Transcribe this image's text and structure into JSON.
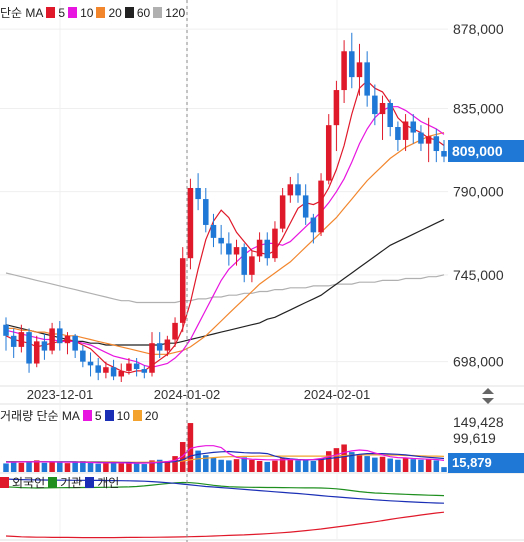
{
  "header": {
    "price_title": "단순 MA",
    "ma": [
      {
        "label": "5",
        "color": "#e0192a"
      },
      {
        "label": "10",
        "color": "#e815e0"
      },
      {
        "label": "20",
        "color": "#f2862d"
      },
      {
        "label": "60",
        "color": "#222222"
      },
      {
        "label": "120",
        "color": "#b0b0b0"
      }
    ],
    "volume_title": "거래량 단순 MA",
    "vol_ma": [
      {
        "label": "5",
        "color": "#e815e0"
      },
      {
        "label": "10",
        "color": "#1a2fb5"
      },
      {
        "label": "20",
        "color": "#f2a22d"
      }
    ],
    "investor": [
      {
        "label": "외국인",
        "color": "#e0192a"
      },
      {
        "label": "기관",
        "color": "#1f8f1f"
      },
      {
        "label": "개인",
        "color": "#1a2fb5"
      }
    ]
  },
  "chart_data": {
    "type": "candlestick",
    "price_axis": {
      "ticks": [
        "878,000",
        "835,000",
        "790,000",
        "745,000",
        "698,000"
      ],
      "ylim": [
        687000,
        884000
      ]
    },
    "current_price": "809,000",
    "date_labels": [
      "2023-12-01",
      "2024-01-02",
      "2024-02-01"
    ],
    "volume_axis": {
      "ticks": [
        "149,428",
        "99,619"
      ],
      "current": "15,879"
    },
    "colors": {
      "up": "#e0192a",
      "down": "#1f78d6"
    },
    "candles": [
      [
        718000,
        722000,
        704000,
        712000
      ],
      [
        712000,
        716000,
        700000,
        706000
      ],
      [
        706000,
        718000,
        703000,
        714000
      ],
      [
        714000,
        716000,
        692000,
        697000
      ],
      [
        697000,
        712000,
        695000,
        709000
      ],
      [
        709000,
        713000,
        699000,
        704000
      ],
      [
        704000,
        719000,
        702000,
        716000
      ],
      [
        716000,
        720000,
        704000,
        708000
      ],
      [
        708000,
        714000,
        702000,
        712000
      ],
      [
        712000,
        713000,
        700000,
        704000
      ],
      [
        704000,
        707000,
        695000,
        698000
      ],
      [
        698000,
        703000,
        690000,
        696000
      ],
      [
        696000,
        700000,
        688000,
        692000
      ],
      [
        692000,
        698000,
        689000,
        695000
      ],
      [
        695000,
        699000,
        688000,
        690000
      ],
      [
        690000,
        697000,
        687000,
        693000
      ],
      [
        693000,
        700000,
        691000,
        697000
      ],
      [
        697000,
        700000,
        690000,
        694000
      ],
      [
        694000,
        696000,
        689000,
        692000
      ],
      [
        692000,
        714000,
        690000,
        708000
      ],
      [
        708000,
        714000,
        700000,
        704000
      ],
      [
        704000,
        712000,
        701000,
        710000
      ],
      [
        710000,
        722000,
        706000,
        719000
      ],
      [
        719000,
        760000,
        714000,
        754000
      ],
      [
        754000,
        797000,
        748000,
        792000
      ],
      [
        792000,
        800000,
        780000,
        786000
      ],
      [
        786000,
        792000,
        768000,
        772000
      ],
      [
        772000,
        778000,
        760000,
        765000
      ],
      [
        765000,
        772000,
        756000,
        762000
      ],
      [
        762000,
        768000,
        750000,
        756000
      ],
      [
        756000,
        764000,
        750000,
        760000
      ],
      [
        760000,
        762000,
        741000,
        745000
      ],
      [
        745000,
        758000,
        741000,
        755000
      ],
      [
        755000,
        768000,
        752000,
        764000
      ],
      [
        764000,
        768000,
        750000,
        754000
      ],
      [
        754000,
        774000,
        752000,
        770000
      ],
      [
        770000,
        792000,
        768000,
        788000
      ],
      [
        788000,
        798000,
        784000,
        794000
      ],
      [
        794000,
        800000,
        784000,
        788000
      ],
      [
        788000,
        794000,
        772000,
        776000
      ],
      [
        776000,
        778000,
        762000,
        768000
      ],
      [
        768000,
        800000,
        766000,
        796000
      ],
      [
        796000,
        832000,
        794000,
        826000
      ],
      [
        826000,
        850000,
        812000,
        845000
      ],
      [
        845000,
        872000,
        838000,
        866000
      ],
      [
        866000,
        876000,
        846000,
        852000
      ],
      [
        852000,
        870000,
        842000,
        860000
      ],
      [
        860000,
        866000,
        836000,
        842000
      ],
      [
        842000,
        848000,
        826000,
        832000
      ],
      [
        832000,
        842000,
        818000,
        838000
      ],
      [
        838000,
        840000,
        820000,
        825000
      ],
      [
        825000,
        828000,
        812000,
        818000
      ],
      [
        818000,
        832000,
        812000,
        828000
      ],
      [
        828000,
        832000,
        816000,
        822000
      ],
      [
        822000,
        826000,
        812000,
        816000
      ],
      [
        816000,
        830000,
        806000,
        820000
      ],
      [
        820000,
        824000,
        806000,
        812000
      ],
      [
        812000,
        818000,
        806000,
        809000
      ]
    ],
    "ma5": [
      712000,
      710000,
      709000,
      708000,
      706000,
      707000,
      708000,
      709000,
      710000,
      709000,
      707000,
      705000,
      701000,
      697000,
      695000,
      693000,
      692000,
      693000,
      693000,
      696000,
      699000,
      702000,
      707000,
      716000,
      730000,
      748000,
      764000,
      774000,
      780000,
      776000,
      768000,
      763000,
      758000,
      757000,
      756000,
      758000,
      765000,
      773000,
      781000,
      784000,
      783000,
      785000,
      792000,
      802000,
      815000,
      832000,
      846000,
      850000,
      846000,
      844000,
      838000,
      830000,
      826000,
      824000,
      822000,
      819000,
      818000,
      815000
    ],
    "ma10": [
      715000,
      714000,
      713000,
      712000,
      711000,
      710000,
      710000,
      709000,
      709000,
      709000,
      708000,
      707000,
      705000,
      703000,
      701000,
      700000,
      699000,
      698000,
      696000,
      695000,
      696000,
      697000,
      700000,
      704000,
      710000,
      718000,
      726000,
      734000,
      742000,
      748000,
      752000,
      756000,
      759000,
      761000,
      762000,
      762000,
      761000,
      763000,
      767000,
      771000,
      775000,
      779000,
      784000,
      790000,
      797000,
      806000,
      816000,
      824000,
      830000,
      834000,
      836000,
      836000,
      834000,
      831000,
      828000,
      826000,
      824000,
      821000
    ],
    "ma20": [
      716000,
      716000,
      715000,
      715000,
      714000,
      714000,
      713000,
      713000,
      712000,
      712000,
      711000,
      710000,
      709000,
      708000,
      707000,
      706000,
      705000,
      704000,
      703000,
      702000,
      702000,
      702000,
      703000,
      704000,
      706000,
      709000,
      712000,
      716000,
      720000,
      724000,
      728000,
      732000,
      736000,
      740000,
      743000,
      746000,
      749000,
      752000,
      756000,
      760000,
      764000,
      768000,
      772000,
      776000,
      781000,
      786000,
      791000,
      796000,
      800000,
      804000,
      808000,
      811000,
      814000,
      816000,
      818000,
      820000,
      821000,
      822000
    ],
    "ma60": [
      718000,
      717000,
      716000,
      715000,
      714000,
      713000,
      712000,
      711000,
      710000,
      709000,
      709000,
      708000,
      708000,
      707000,
      707000,
      707000,
      707000,
      707000,
      707000,
      707000,
      707000,
      708000,
      708000,
      709000,
      710000,
      711000,
      712000,
      713000,
      714000,
      715000,
      716000,
      717000,
      718000,
      719000,
      721000,
      722000,
      724000,
      726000,
      728000,
      730000,
      732000,
      734000,
      737000,
      740000,
      743000,
      746000,
      749000,
      752000,
      755000,
      758000,
      761000,
      763000,
      765000,
      767000,
      769000,
      771000,
      773000,
      775000
    ],
    "ma120": [
      746000,
      745000,
      744000,
      743000,
      742000,
      741000,
      740000,
      739000,
      738000,
      737000,
      736000,
      735000,
      734000,
      733000,
      732000,
      731000,
      731000,
      730000,
      730000,
      730000,
      730000,
      730000,
      730000,
      731000,
      731000,
      732000,
      732000,
      733000,
      733000,
      734000,
      734000,
      735000,
      735000,
      736000,
      736000,
      737000,
      737000,
      738000,
      738000,
      738000,
      739000,
      739000,
      739000,
      740000,
      740000,
      740000,
      741000,
      741000,
      741000,
      742000,
      742000,
      742000,
      743000,
      743000,
      743000,
      744000,
      744000,
      745000
    ],
    "volume": [
      28000,
      32000,
      30000,
      35000,
      38000,
      30000,
      33000,
      31000,
      29000,
      34000,
      36000,
      30000,
      27000,
      29000,
      31000,
      28000,
      30000,
      29000,
      26000,
      38000,
      40000,
      36000,
      52000,
      98000,
      160000,
      70000,
      55000,
      46000,
      40000,
      38000,
      42000,
      48000,
      40000,
      36000,
      33000,
      37000,
      45000,
      42000,
      38000,
      40000,
      36000,
      44000,
      68000,
      78000,
      90000,
      65000,
      58000,
      52000,
      47000,
      50000,
      44000,
      40000,
      46000,
      42000,
      40000,
      43000,
      38000,
      15879
    ],
    "vol_ma5": [
      32000,
      32000,
      33000,
      33000,
      33000,
      33000,
      33000,
      32000,
      32000,
      32000,
      32000,
      31000,
      30000,
      30000,
      30000,
      30000,
      29000,
      29000,
      29000,
      30000,
      32000,
      34000,
      38000,
      52000,
      77000,
      83000,
      86000,
      86000,
      80000,
      60000,
      48000,
      44000,
      42000,
      41000,
      40000,
      40000,
      40000,
      41000,
      40000,
      40000,
      41000,
      44000,
      50000,
      56000,
      64000,
      69000,
      72000,
      70000,
      62000,
      56000,
      50000,
      47000,
      46000,
      44000,
      43000,
      42000,
      41000,
      38000
    ],
    "vol_ma10": [
      33000,
      33000,
      33000,
      33000,
      33000,
      33000,
      33000,
      33000,
      33000,
      33000,
      32000,
      32000,
      32000,
      31000,
      31000,
      31000,
      31000,
      30000,
      30000,
      30000,
      31000,
      32000,
      34000,
      40000,
      52000,
      58000,
      61000,
      64000,
      66000,
      67000,
      65000,
      63000,
      62000,
      62000,
      60000,
      52000,
      46000,
      43000,
      41000,
      40000,
      40000,
      41000,
      44000,
      47000,
      50000,
      54000,
      58000,
      60000,
      60000,
      60000,
      59000,
      58000,
      56000,
      53000,
      50000,
      48000,
      46000,
      44000
    ],
    "vol_ma20": [
      34000,
      34000,
      34000,
      34000,
      34000,
      34000,
      33000,
      33000,
      33000,
      33000,
      33000,
      33000,
      33000,
      33000,
      33000,
      32000,
      32000,
      32000,
      32000,
      32000,
      33000,
      33000,
      34000,
      36000,
      40000,
      43000,
      45000,
      47000,
      49000,
      50000,
      50000,
      51000,
      51000,
      52000,
      52000,
      52000,
      52000,
      52000,
      52000,
      52000,
      52000,
      52000,
      52000,
      53000,
      54000,
      55000,
      56000,
      56000,
      56000,
      56000,
      55000,
      55000,
      54000,
      54000,
      53000,
      52000,
      52000,
      51000
    ],
    "investor": {
      "foreign": [
        -1500,
        -1520,
        -1540,
        -1550,
        -1560,
        -1560,
        -1570,
        -1570,
        -1570,
        -1575,
        -1578,
        -1580,
        -1580,
        -1580,
        -1578,
        -1575,
        -1570,
        -1568,
        -1566,
        -1562,
        -1558,
        -1552,
        -1548,
        -1542,
        -1535,
        -1525,
        -1515,
        -1500,
        -1485,
        -1470,
        -1455,
        -1440,
        -1420,
        -1400,
        -1380,
        -1355,
        -1330,
        -1300,
        -1265,
        -1225,
        -1185,
        -1140,
        -1090,
        -1040,
        -990,
        -940,
        -885,
        -830,
        -775,
        -715,
        -655,
        -595,
        -540,
        -485,
        -430,
        -380,
        -330,
        -290
      ],
      "institution": [
        1000,
        980,
        960,
        950,
        940,
        945,
        950,
        955,
        960,
        962,
        965,
        968,
        970,
        975,
        980,
        990,
        1000,
        1020,
        1050,
        1090,
        1130,
        1170,
        1200,
        1220,
        1210,
        1180,
        1130,
        1080,
        1040,
        1010,
        990,
        980,
        975,
        970,
        968,
        965,
        960,
        955,
        950,
        948,
        945,
        940,
        925,
        900,
        860,
        810,
        760,
        720,
        690,
        670,
        650,
        635,
        620,
        605,
        590,
        575,
        565,
        555
      ],
      "individual": [
        1400,
        1380,
        1370,
        1360,
        1355,
        1350,
        1345,
        1340,
        1338,
        1335,
        1332,
        1330,
        1328,
        1325,
        1320,
        1315,
        1310,
        1300,
        1285,
        1265,
        1240,
        1210,
        1180,
        1140,
        1100,
        1060,
        1020,
        990,
        960,
        930,
        900,
        870,
        840,
        810,
        780,
        750,
        720,
        690,
        660,
        625,
        590,
        555,
        520,
        490,
        460,
        430,
        400,
        370,
        340,
        315,
        290,
        270,
        250,
        230,
        210,
        195,
        180,
        168
      ]
    }
  }
}
